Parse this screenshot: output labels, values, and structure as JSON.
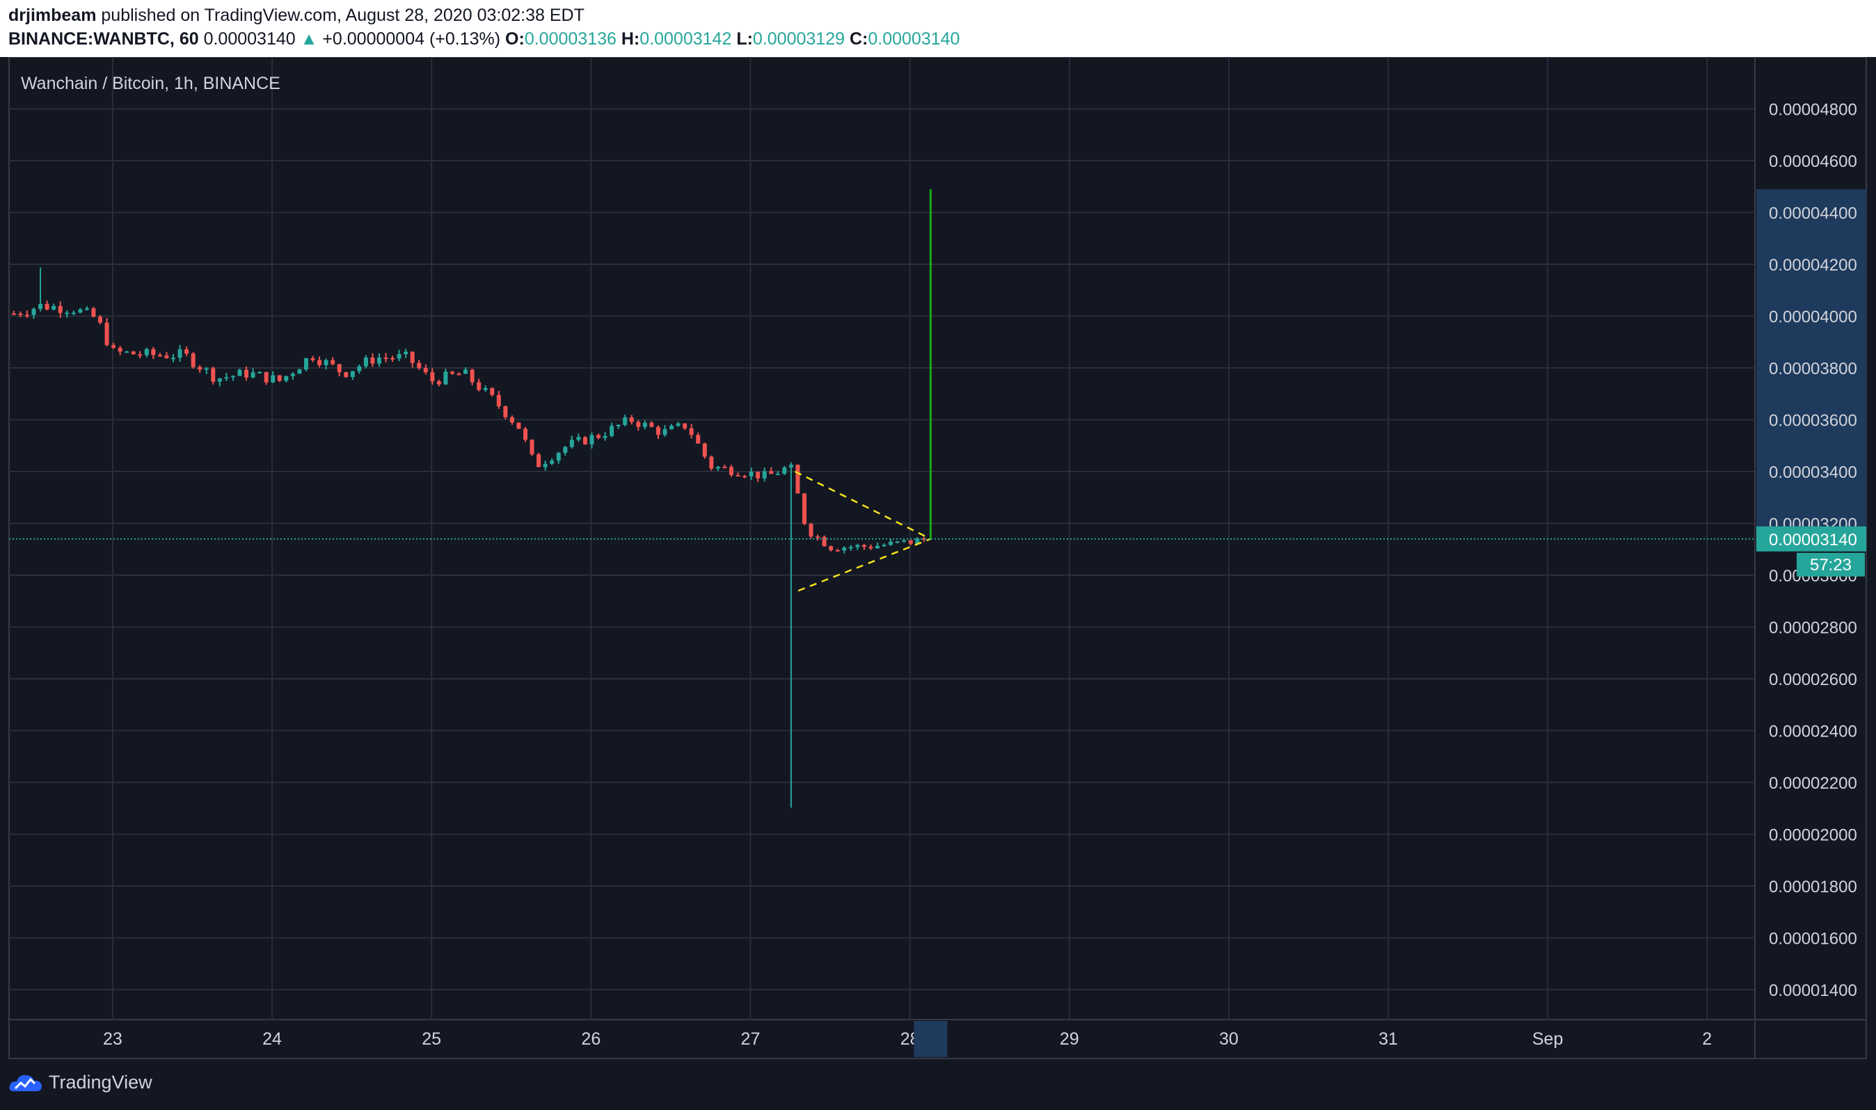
{
  "header": {
    "author": "drjimbeam",
    "published_text": "published on TradingView.com, August 28, 2020 03:02:38 EDT",
    "symbol": "BINANCE:WANBTC, 60",
    "last_price": "0.00003140",
    "change_arrow": "▲",
    "change": "+0.00000004 (+0.13%)",
    "o_label": "O:",
    "o_value": "0.00003136",
    "h_label": "H:",
    "h_value": "0.00003142",
    "l_label": "L:",
    "l_value": "0.00003129",
    "c_label": "C:",
    "c_value": "0.00003140"
  },
  "footer": {
    "brand": "TradingView"
  },
  "chart_data": {
    "type": "candlestick",
    "title": "Wanchain / Bitcoin, 1h, BINANCE",
    "y_range": [
      1.29e-05,
      5e-05
    ],
    "y_ticks": [
      "0.00004800",
      "0.00004600",
      "0.00004400",
      "0.00004200",
      "0.00004000",
      "0.00003800",
      "0.00003600",
      "0.00003400",
      "0.00003200",
      "0.00003000",
      "0.00002800",
      "0.00002600",
      "0.00002400",
      "0.00002200",
      "0.00002000",
      "0.00001800",
      "0.00001600",
      "0.00001400"
    ],
    "x_range_days": [
      22.35,
      33.3
    ],
    "x_ticks": [
      {
        "day": 23,
        "label": "23"
      },
      {
        "day": 24,
        "label": "24"
      },
      {
        "day": 25,
        "label": "25"
      },
      {
        "day": 26,
        "label": "26"
      },
      {
        "day": 27,
        "label": "27"
      },
      {
        "day": 28,
        "label": "28"
      },
      {
        "day": 29,
        "label": "29"
      },
      {
        "day": 30,
        "label": "30"
      },
      {
        "day": 31,
        "label": "31"
      },
      {
        "day": 32,
        "label": "Sep"
      },
      {
        "day": 33,
        "label": "2"
      }
    ],
    "current_price": {
      "value": 3.14e-05,
      "label": "0.00003140",
      "countdown": "57:23"
    },
    "target_line": {
      "day": 28.13,
      "from": 3.14e-05,
      "to": 4.49e-05
    },
    "triangle": [
      {
        "from": [
          27.28,
          3.4e-05
        ],
        "to": [
          28.13,
          3.14e-05
        ]
      },
      {
        "from": [
          27.3,
          2.94e-05
        ],
        "to": [
          28.13,
          3.14e-05
        ]
      }
    ],
    "highlight_band": {
      "from": 3.14e-05,
      "to": 4.49e-05
    },
    "series_close": [
      [
        22.38,
        4.01e-05
      ],
      [
        22.55,
        4.04e-05
      ],
      [
        22.75,
        4.03e-05
      ],
      [
        22.9,
        3.99e-05
      ],
      [
        23.0,
        3.86e-05
      ],
      [
        23.25,
        3.85e-05
      ],
      [
        23.45,
        3.85e-05
      ],
      [
        23.65,
        3.76e-05
      ],
      [
        23.85,
        3.78e-05
      ],
      [
        24.05,
        3.75e-05
      ],
      [
        24.25,
        3.85e-05
      ],
      [
        24.45,
        3.78e-05
      ],
      [
        24.65,
        3.84e-05
      ],
      [
        24.85,
        3.84e-05
      ],
      [
        25.0,
        3.75e-05
      ],
      [
        25.2,
        3.78e-05
      ],
      [
        25.4,
        3.67e-05
      ],
      [
        25.55,
        3.57e-05
      ],
      [
        25.65,
        3.42e-05
      ],
      [
        25.85,
        3.5e-05
      ],
      [
        26.05,
        3.54e-05
      ],
      [
        26.25,
        3.6e-05
      ],
      [
        26.45,
        3.55e-05
      ],
      [
        26.6,
        3.58e-05
      ],
      [
        26.75,
        3.42e-05
      ],
      [
        26.95,
        3.4e-05
      ],
      [
        27.1,
        3.38e-05
      ],
      [
        27.25,
        3.42e-05
      ],
      [
        27.35,
        3.18e-05
      ],
      [
        27.5,
        3.11e-05
      ],
      [
        27.7,
        3.11e-05
      ],
      [
        27.9,
        3.12e-05
      ],
      [
        28.12,
        3.14e-05
      ]
    ],
    "series_high": [
      [
        22.38,
        4.07e-05
      ],
      [
        22.55,
        4.19e-05
      ],
      [
        22.75,
        4.07e-05
      ],
      [
        22.9,
        4.04e-05
      ],
      [
        23.0,
        3.99e-05
      ],
      [
        23.25,
        3.91e-05
      ],
      [
        23.45,
        3.93e-05
      ],
      [
        23.65,
        3.89e-05
      ],
      [
        23.85,
        3.83e-05
      ],
      [
        24.05,
        3.82e-05
      ],
      [
        24.25,
        3.92e-05
      ],
      [
        24.45,
        3.84e-05
      ],
      [
        24.65,
        3.92e-05
      ],
      [
        24.85,
        3.9e-05
      ],
      [
        25.0,
        3.84e-05
      ],
      [
        25.2,
        3.82e-05
      ],
      [
        25.4,
        3.75e-05
      ],
      [
        25.55,
        3.64e-05
      ],
      [
        25.65,
        3.56e-05
      ],
      [
        25.85,
        3.54e-05
      ],
      [
        26.05,
        3.62e-05
      ],
      [
        26.25,
        3.63e-05
      ],
      [
        26.45,
        3.62e-05
      ],
      [
        26.6,
        3.63e-05
      ],
      [
        26.75,
        3.55e-05
      ],
      [
        26.95,
        3.44e-05
      ],
      [
        27.1,
        3.45e-05
      ],
      [
        27.25,
        3.46e-05
      ],
      [
        27.35,
        3.3e-05
      ],
      [
        27.5,
        3.2e-05
      ],
      [
        27.7,
        3.14e-05
      ],
      [
        27.9,
        3.15e-05
      ],
      [
        28.12,
        3.15e-05
      ]
    ],
    "series_low": [
      [
        22.38,
        3.95e-05
      ],
      [
        22.55,
        3.96e-05
      ],
      [
        22.75,
        3.97e-05
      ],
      [
        22.9,
        3.95e-05
      ],
      [
        23.0,
        3.8e-05
      ],
      [
        23.25,
        3.81e-05
      ],
      [
        23.45,
        3.81e-05
      ],
      [
        23.65,
        3.71e-05
      ],
      [
        23.85,
        3.75e-05
      ],
      [
        24.05,
        3.72e-05
      ],
      [
        24.25,
        3.75e-05
      ],
      [
        24.45,
        3.75e-05
      ],
      [
        24.65,
        3.76e-05
      ],
      [
        24.85,
        3.76e-05
      ],
      [
        25.0,
        3.7e-05
      ],
      [
        25.2,
        3.73e-05
      ],
      [
        25.4,
        3.61e-05
      ],
      [
        25.55,
        3.39e-05
      ],
      [
        25.65,
        3.34e-05
      ],
      [
        25.85,
        3.43e-05
      ],
      [
        26.05,
        3.49e-05
      ],
      [
        26.25,
        3.52e-05
      ],
      [
        26.45,
        3.5e-05
      ],
      [
        26.6,
        3.54e-05
      ],
      [
        26.75,
        3.28e-05
      ],
      [
        26.95,
        3.3e-05
      ],
      [
        27.1,
        3.2e-05
      ],
      [
        27.25,
        2.05e-05
      ],
      [
        27.35,
        3.1e-05
      ],
      [
        27.5,
        3.01e-05
      ],
      [
        27.7,
        3.07e-05
      ],
      [
        27.9,
        3.09e-05
      ],
      [
        28.12,
        3.13e-05
      ]
    ],
    "colors": {
      "background": "#131722",
      "grid": "#2a2e39",
      "up": "#26a69a",
      "down": "#ef5350",
      "target": "#1aa81a",
      "triangle": "#f5e11a",
      "price_line": "#26a69a",
      "axis_text": "#d1d4dc",
      "highlight": "#1e3a5c"
    }
  }
}
